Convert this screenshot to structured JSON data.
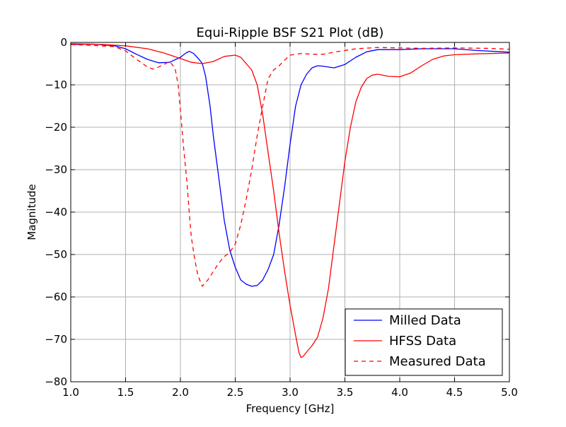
{
  "chart_data": {
    "type": "line",
    "title": "Equi-Ripple BSF S21 Plot (dB)",
    "xlabel": "Frequency [GHz]",
    "ylabel": "Magnitude",
    "xlim": [
      1.0,
      5.0
    ],
    "ylim": [
      -80,
      0
    ],
    "xticks": [
      1.0,
      1.5,
      2.0,
      2.5,
      3.0,
      3.5,
      4.0,
      4.5,
      5.0
    ],
    "xtick_labels": [
      "1.0",
      "1.5",
      "2.0",
      "2.5",
      "3.0",
      "3.5",
      "4.0",
      "4.5",
      "5.0"
    ],
    "yticks": [
      0,
      -10,
      -20,
      -30,
      -40,
      -50,
      -60,
      -70,
      -80
    ],
    "ytick_labels": [
      "0",
      "−10",
      "−20",
      "−30",
      "−40",
      "−50",
      "−60",
      "−70",
      "−80"
    ],
    "grid": true,
    "legend_position": "lower-right",
    "series": [
      {
        "name": "Milled Data",
        "color": "#0000ff",
        "dash": "solid",
        "points": [
          [
            1.0,
            -0.5
          ],
          [
            1.2,
            -0.4
          ],
          [
            1.4,
            -0.8
          ],
          [
            1.5,
            -1.5
          ],
          [
            1.6,
            -2.8
          ],
          [
            1.7,
            -4.0
          ],
          [
            1.8,
            -4.8
          ],
          [
            1.9,
            -4.7
          ],
          [
            2.0,
            -3.5
          ],
          [
            2.05,
            -2.5
          ],
          [
            2.08,
            -2.1
          ],
          [
            2.12,
            -2.6
          ],
          [
            2.17,
            -4.0
          ],
          [
            2.2,
            -5.0
          ],
          [
            2.23,
            -8.0
          ],
          [
            2.27,
            -15.0
          ],
          [
            2.3,
            -22.0
          ],
          [
            2.35,
            -32.0
          ],
          [
            2.4,
            -42.0
          ],
          [
            2.45,
            -49.0
          ],
          [
            2.5,
            -53.0
          ],
          [
            2.55,
            -56.0
          ],
          [
            2.6,
            -57.0
          ],
          [
            2.65,
            -57.5
          ],
          [
            2.7,
            -57.3
          ],
          [
            2.75,
            -56.0
          ],
          [
            2.8,
            -53.5
          ],
          [
            2.85,
            -50.0
          ],
          [
            2.9,
            -43.0
          ],
          [
            2.95,
            -34.0
          ],
          [
            3.0,
            -24.0
          ],
          [
            3.05,
            -15.0
          ],
          [
            3.1,
            -10.0
          ],
          [
            3.15,
            -7.5
          ],
          [
            3.2,
            -6.0
          ],
          [
            3.25,
            -5.5
          ],
          [
            3.3,
            -5.6
          ],
          [
            3.4,
            -6.0
          ],
          [
            3.5,
            -5.2
          ],
          [
            3.6,
            -3.5
          ],
          [
            3.7,
            -2.2
          ],
          [
            3.8,
            -1.7
          ],
          [
            4.0,
            -1.7
          ],
          [
            4.2,
            -1.5
          ],
          [
            4.5,
            -1.5
          ],
          [
            4.7,
            -1.9
          ],
          [
            5.0,
            -2.3
          ]
        ]
      },
      {
        "name": "HFSS Data",
        "color": "#ff0000",
        "dash": "solid",
        "points": [
          [
            1.0,
            -0.3
          ],
          [
            1.3,
            -0.5
          ],
          [
            1.5,
            -0.8
          ],
          [
            1.7,
            -1.5
          ],
          [
            1.85,
            -2.5
          ],
          [
            2.0,
            -3.8
          ],
          [
            2.1,
            -4.7
          ],
          [
            2.2,
            -5.0
          ],
          [
            2.3,
            -4.5
          ],
          [
            2.4,
            -3.3
          ],
          [
            2.5,
            -3.0
          ],
          [
            2.55,
            -3.5
          ],
          [
            2.6,
            -5.0
          ],
          [
            2.65,
            -6.5
          ],
          [
            2.7,
            -10.0
          ],
          [
            2.75,
            -17.0
          ],
          [
            2.8,
            -26.0
          ],
          [
            2.85,
            -35.0
          ],
          [
            2.9,
            -45.0
          ],
          [
            2.95,
            -54.0
          ],
          [
            3.0,
            -62.0
          ],
          [
            3.05,
            -69.0
          ],
          [
            3.08,
            -73.0
          ],
          [
            3.1,
            -74.3
          ],
          [
            3.12,
            -74.0
          ],
          [
            3.15,
            -73.0
          ],
          [
            3.2,
            -71.5
          ],
          [
            3.25,
            -69.5
          ],
          [
            3.3,
            -65.0
          ],
          [
            3.35,
            -58.0
          ],
          [
            3.4,
            -48.0
          ],
          [
            3.45,
            -38.0
          ],
          [
            3.5,
            -28.0
          ],
          [
            3.55,
            -20.0
          ],
          [
            3.6,
            -14.0
          ],
          [
            3.65,
            -10.5
          ],
          [
            3.7,
            -8.5
          ],
          [
            3.75,
            -7.7
          ],
          [
            3.8,
            -7.5
          ],
          [
            3.9,
            -8.0
          ],
          [
            4.0,
            -8.1
          ],
          [
            4.1,
            -7.2
          ],
          [
            4.2,
            -5.5
          ],
          [
            4.3,
            -4.0
          ],
          [
            4.4,
            -3.2
          ],
          [
            4.5,
            -2.9
          ],
          [
            4.7,
            -2.7
          ],
          [
            5.0,
            -2.5
          ]
        ]
      },
      {
        "name": "Measured Data",
        "color": "#ff0000",
        "dash": "dashed",
        "points": [
          [
            1.0,
            -0.5
          ],
          [
            1.2,
            -0.7
          ],
          [
            1.4,
            -1.0
          ],
          [
            1.5,
            -2.0
          ],
          [
            1.6,
            -4.0
          ],
          [
            1.7,
            -5.8
          ],
          [
            1.75,
            -6.3
          ],
          [
            1.8,
            -5.8
          ],
          [
            1.85,
            -5.2
          ],
          [
            1.9,
            -4.5
          ],
          [
            1.95,
            -6.0
          ],
          [
            1.98,
            -10.0
          ],
          [
            2.0,
            -16.0
          ],
          [
            2.03,
            -25.0
          ],
          [
            2.06,
            -33.0
          ],
          [
            2.08,
            -40.0
          ],
          [
            2.1,
            -46.0
          ],
          [
            2.13,
            -51.0
          ],
          [
            2.16,
            -55.0
          ],
          [
            2.2,
            -57.5
          ],
          [
            2.25,
            -56.0
          ],
          [
            2.3,
            -54.0
          ],
          [
            2.35,
            -52.0
          ],
          [
            2.4,
            -50.5
          ],
          [
            2.45,
            -49.5
          ],
          [
            2.5,
            -47.5
          ],
          [
            2.55,
            -43.0
          ],
          [
            2.6,
            -37.0
          ],
          [
            2.65,
            -30.0
          ],
          [
            2.7,
            -22.0
          ],
          [
            2.75,
            -15.0
          ],
          [
            2.8,
            -8.5
          ],
          [
            2.85,
            -6.5
          ],
          [
            2.9,
            -5.5
          ],
          [
            2.95,
            -4.2
          ],
          [
            3.0,
            -3.0
          ],
          [
            3.1,
            -2.6
          ],
          [
            3.2,
            -2.8
          ],
          [
            3.3,
            -2.8
          ],
          [
            3.4,
            -2.3
          ],
          [
            3.6,
            -1.5
          ],
          [
            3.8,
            -1.2
          ],
          [
            4.0,
            -1.3
          ],
          [
            4.2,
            -1.4
          ],
          [
            4.5,
            -1.3
          ],
          [
            4.8,
            -1.4
          ],
          [
            5.0,
            -1.6
          ]
        ]
      }
    ]
  }
}
